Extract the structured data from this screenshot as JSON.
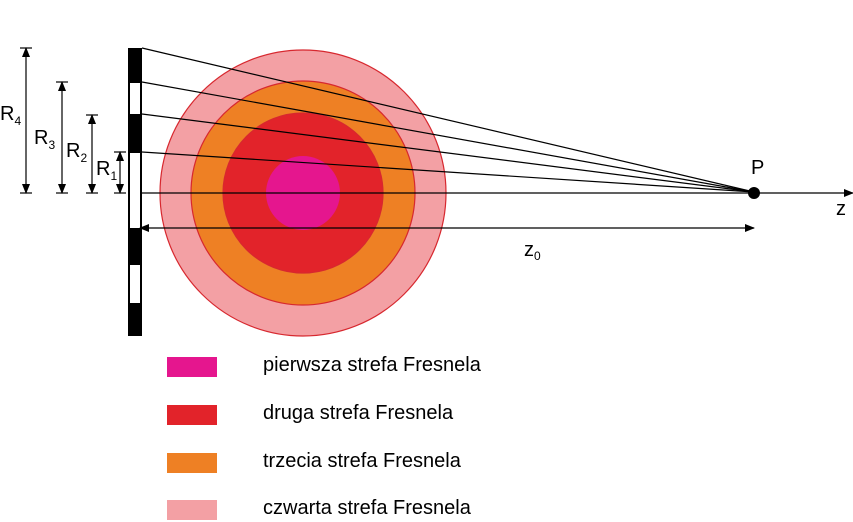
{
  "labels": {
    "r4": "R",
    "r4_sub": "4",
    "r3": "R",
    "r3_sub": "3",
    "r2": "R",
    "r2_sub": "2",
    "r1": "R",
    "r1_sub": "1",
    "point": "P",
    "axis": "z",
    "distance": "z",
    "distance_sub": "0"
  },
  "colors": {
    "zone1": "#E5168E",
    "zone2": "#E2232A",
    "zone3": "#EE8024",
    "zone4": "#F3A0A4",
    "outline": "#D7282F",
    "lines": "#000000"
  },
  "legend": [
    {
      "label": "pierwsza strefa Fresnela",
      "color": "#E5168E"
    },
    {
      "label": "druga strefa Fresnela",
      "color": "#E2232A"
    },
    {
      "label": "trzecia strefa Fresnela",
      "color": "#EE8024"
    },
    {
      "label": "czwarta strefa Fresnela",
      "color": "#F3A0A4"
    }
  ]
}
